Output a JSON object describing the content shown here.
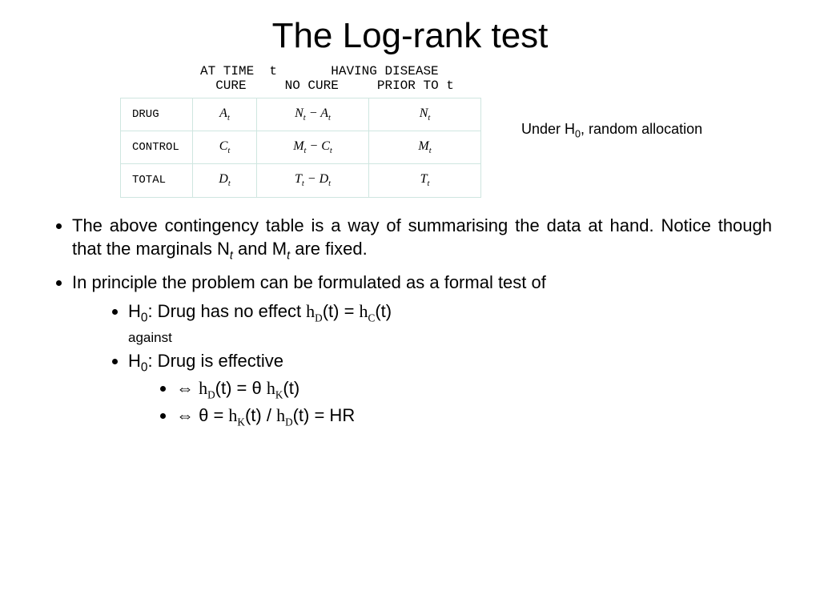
{
  "title": "The Log-rank test",
  "table": {
    "header_line1_left": "AT TIME  t",
    "header_line1_right": "HAVING DISEASE",
    "header_line2_left": "CURE",
    "header_line2_mid": "NO CURE",
    "header_line2_right": "PRIOR TO t",
    "rows": {
      "drug": {
        "label": "DRUG",
        "cure_base": "A",
        "nocure_l": "N",
        "nocure_r": "A",
        "total_base": "N"
      },
      "control": {
        "label": "CONTROL",
        "cure_base": "C",
        "nocure_l": "M",
        "nocure_r": "C",
        "total_base": "M"
      },
      "total": {
        "label": "TOTAL",
        "cure_base": "D",
        "nocure_l": "T",
        "nocure_r": "D",
        "total_base": "T"
      }
    },
    "sub": "t"
  },
  "side_note": {
    "pre": "Under H",
    "sub": "0",
    "post": ", random allocation"
  },
  "bullets": {
    "b1_pre": "The above contingency table is a way of summarising the data at hand. Notice though that the marginals N",
    "b1_mid": " and M",
    "b1_post": " are fixed.",
    "b1_sub": "t",
    "b2": "In principle the problem can be formulated as a formal test of",
    "h0_a_pre": "H",
    "h0_a_sub": "0",
    "h0_a_mid": ": Drug has no effect ",
    "h0_a_hD": "h",
    "h0_a_D": "D",
    "h0_a_t": "(t) = ",
    "h0_a_hC": "h",
    "h0_a_C": "C",
    "h0_a_t2": "(t)",
    "against": "against",
    "h0_b_pre": "H",
    "h0_b_sub": "0",
    "h0_b_post": ": Drug is effective",
    "eq1_iff": "⇔ ",
    "eq1_hD": "h",
    "eq1_D": "D",
    "eq1_mid": "(t) = θ ",
    "eq1_hK": "h",
    "eq1_K": "K",
    "eq1_end": "(t)",
    "eq2_iff": "⇔ θ = ",
    "eq2_hK": "h",
    "eq2_K": "K",
    "eq2_mid": "(t) / ",
    "eq2_hD": "h",
    "eq2_D": "D",
    "eq2_end": "(t) = HR"
  },
  "colors": {
    "border": "#cfe6e0",
    "text": "#000000",
    "background": "#ffffff"
  }
}
